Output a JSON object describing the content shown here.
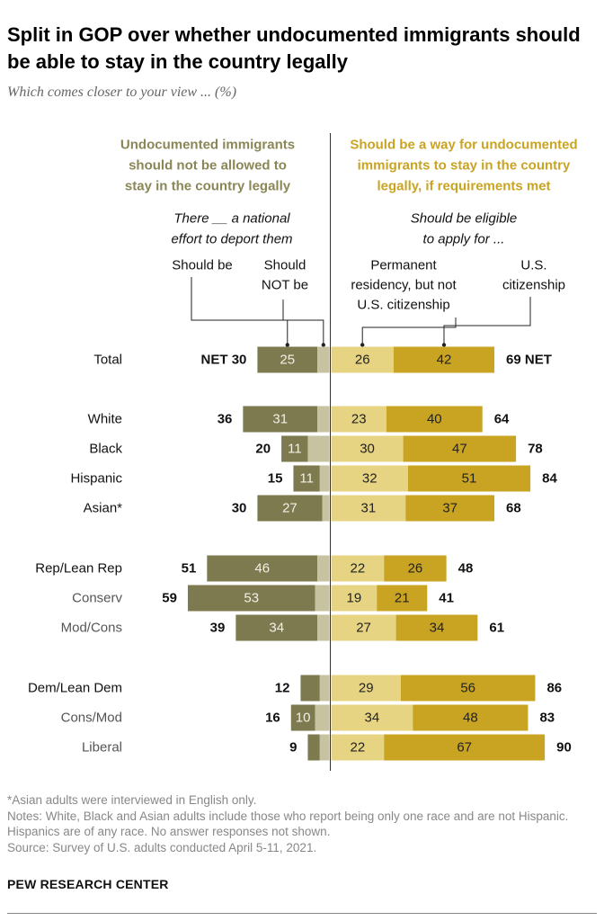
{
  "title": "Split in GOP over whether undocumented immigrants should be able to stay in the country legally",
  "subtitle": "Which comes closer to your view ... (%)",
  "colors": {
    "deport": "#7d7a4f",
    "not_deport": "#c7c3a1",
    "permanent": "#e6d483",
    "citizenship": "#c9a422",
    "left_header": "#8a8656",
    "right_header": "#c9a422"
  },
  "headers": {
    "left_group": [
      "Undocumented immigrants",
      "should not be allowed to",
      "stay in the country legally"
    ],
    "right_group": [
      "Should be a way for undocumented",
      "immigrants to stay in the country",
      "legally, if requirements met"
    ],
    "left_question": [
      "There __ a national",
      "effort to deport them"
    ],
    "right_question": [
      "Should be eligible",
      "to apply for ..."
    ],
    "col_should_be": [
      "Should be"
    ],
    "col_should_not_be": [
      "Should",
      "NOT be"
    ],
    "col_permanent": [
      "Permanent",
      "residency, but not",
      "U.S. citizenship"
    ],
    "col_citizenship": [
      "U.S.",
      "citizenship"
    ]
  },
  "net_prefix": "NET",
  "net_suffix": "NET",
  "chart_data": {
    "type": "bar",
    "orientation": "horizontal diverging stacked",
    "series": [
      {
        "name": "Should be",
        "group": "Undocumented immigrants should not be allowed to stay in the country legally"
      },
      {
        "name": "Should NOT be",
        "group": "Undocumented immigrants should not be allowed to stay in the country legally"
      },
      {
        "name": "Permanent residency, but not U.S. citizenship",
        "group": "Should be a way for undocumented immigrants to stay in the country legally, if requirements met"
      },
      {
        "name": "U.S. citizenship",
        "group": "Should be a way for undocumented immigrants to stay in the country legally, if requirements met"
      }
    ],
    "rows": [
      {
        "label": "Total",
        "style": "total",
        "deport": 25,
        "not_deport": 5,
        "permanent": 26,
        "citizenship": 42,
        "net_left": 30,
        "net_right": 69
      },
      {
        "label": "White",
        "style": "sub",
        "deport": 31,
        "not_deport": 5,
        "permanent": 23,
        "citizenship": 40,
        "net_left": 36,
        "net_right": 64
      },
      {
        "label": "Black",
        "style": "sub",
        "deport": 11,
        "not_deport": 9,
        "permanent": 30,
        "citizenship": 47,
        "net_left": 20,
        "net_right": 78
      },
      {
        "label": "Hispanic",
        "style": "sub",
        "deport": 11,
        "not_deport": 4,
        "permanent": 32,
        "citizenship": 51,
        "net_left": 15,
        "net_right": 84
      },
      {
        "label": "Asian*",
        "style": "sub",
        "deport": 27,
        "not_deport": 3,
        "permanent": 31,
        "citizenship": 37,
        "net_left": 30,
        "net_right": 68
      },
      {
        "label": "Rep/Lean Rep",
        "style": "sub",
        "deport": 46,
        "not_deport": 5,
        "permanent": 22,
        "citizenship": 26,
        "net_left": 51,
        "net_right": 48
      },
      {
        "label": "Conserv",
        "style": "nested",
        "deport": 53,
        "not_deport": 6,
        "permanent": 19,
        "citizenship": 21,
        "net_left": 59,
        "net_right": 41
      },
      {
        "label": "Mod/Cons",
        "style": "nested",
        "deport": 34,
        "not_deport": 5,
        "permanent": 27,
        "citizenship": 34,
        "net_left": 39,
        "net_right": 61
      },
      {
        "label": "Dem/Lean Dem",
        "style": "sub",
        "deport": 8,
        "not_deport": 4,
        "permanent": 29,
        "citizenship": 56,
        "net_left": 12,
        "net_right": 86
      },
      {
        "label": "Cons/Mod",
        "style": "nested",
        "deport": 10,
        "not_deport": 6,
        "permanent": 34,
        "citizenship": 48,
        "net_left": 16,
        "net_right": 83
      },
      {
        "label": "Liberal",
        "style": "nested",
        "deport": 5,
        "not_deport": 4,
        "permanent": 22,
        "citizenship": 67,
        "net_left": 9,
        "net_right": 90
      }
    ],
    "value_labels_hidden_below": 10
  },
  "footnotes": [
    "*Asian adults were interviewed in English only.",
    "Notes: White, Black and Asian adults include those who report being only one race and are not Hispanic. Hispanics are of any race. No answer responses not shown.",
    "Source: Survey of U.S. adults conducted April 5-11, 2021."
  ],
  "source_org": "PEW RESEARCH CENTER"
}
